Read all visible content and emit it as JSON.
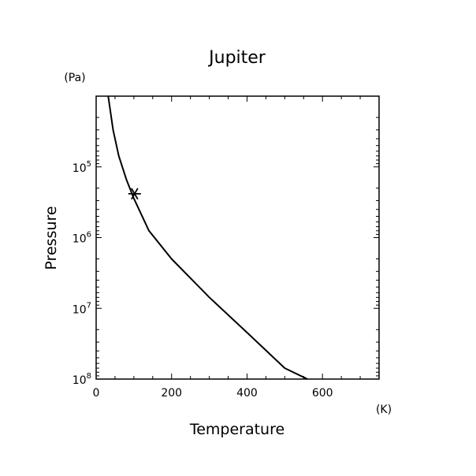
{
  "chart_data": {
    "type": "line",
    "title": "Jupiter",
    "xlabel": "Temperature",
    "ylabel": "Pressure",
    "x_unit": "(K)",
    "y_unit": "(Pa)",
    "xlim": [
      0,
      750
    ],
    "ylim": [
      10000,
      100000000
    ],
    "y_scale": "log",
    "y_inverted": true,
    "x_ticks": [
      0,
      200,
      400,
      600
    ],
    "y_ticks": [
      {
        "value": 100000,
        "base": "10",
        "exp": "5"
      },
      {
        "value": 1000000,
        "base": "10",
        "exp": "6"
      },
      {
        "value": 10000000,
        "base": "10",
        "exp": "7"
      },
      {
        "value": 100000000,
        "base": "10",
        "exp": "8"
      }
    ],
    "grid": false,
    "series": [
      {
        "x": [
          32,
          45,
          60,
          80,
          100,
          140,
          200,
          300,
          400,
          500,
          560
        ],
        "y": [
          10000,
          30000,
          70000,
          150000,
          280000,
          800000,
          2000000,
          7000000,
          22000000,
          70000000,
          100000000
        ]
      }
    ],
    "marker": {
      "x": 102,
      "y": 240000,
      "symbol": "asterisk"
    }
  },
  "colors": {
    "foreground": "#000000",
    "background": "#ffffff"
  }
}
